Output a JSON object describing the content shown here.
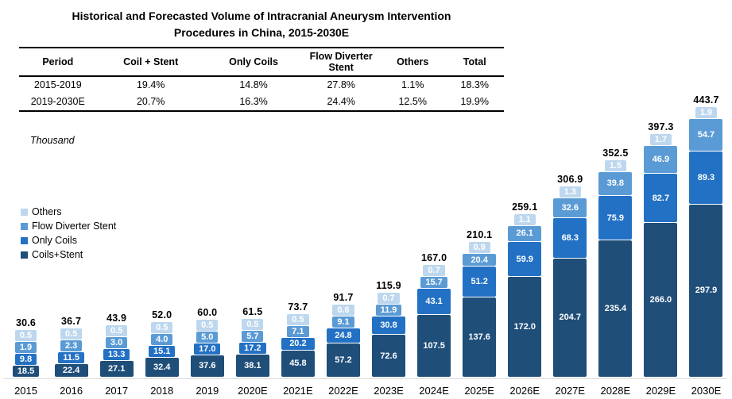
{
  "header": {
    "title_line1": "Historical and Forecasted Volume of Intracranial Aneurysm Intervention",
    "title_line2": "Procedures in China, 2015-2030E",
    "table": {
      "columns": [
        "Period",
        "Coil + Stent",
        "Only Coils",
        "Flow Diverter Stent",
        "Others",
        "Total"
      ],
      "rows": [
        [
          "2015-2019",
          "19.4%",
          "14.8%",
          "27.8%",
          "1.1%",
          "18.3%"
        ],
        [
          "2019-2030E",
          "20.7%",
          "16.3%",
          "24.4%",
          "12.5%",
          "19.9%"
        ]
      ]
    }
  },
  "chart": {
    "unit_label": "Thousand",
    "legend": [
      {
        "label": "Others",
        "color": "#BDD7EE"
      },
      {
        "label": "Flow Diverter Stent",
        "color": "#5B9BD5"
      },
      {
        "label": "Only Coils",
        "color": "#2371C4"
      },
      {
        "label": "Coils+Stent",
        "color": "#1F4E79"
      }
    ]
  },
  "chart_data": {
    "type": "bar",
    "stacked": true,
    "title": "Historical and Forecasted Volume of Intracranial Aneurysm Intervention Procedures in China, 2015-2030E",
    "ylabel": "Thousand",
    "ylim": [
      0,
      460
    ],
    "grid": false,
    "legend_position": "middle-left",
    "categories": [
      "2015",
      "2016",
      "2017",
      "2018",
      "2019",
      "2020E",
      "2021E",
      "2022E",
      "2023E",
      "2024E",
      "2025E",
      "2026E",
      "2027E",
      "2028E",
      "2029E",
      "2030E"
    ],
    "series": [
      {
        "name": "Coils+Stent",
        "color": "#1F4E79",
        "values": [
          18.5,
          22.4,
          27.1,
          32.4,
          37.6,
          38.1,
          45.8,
          57.2,
          72.6,
          107.5,
          137.6,
          172.0,
          204.7,
          235.4,
          266.0,
          297.9
        ]
      },
      {
        "name": "Only Coils",
        "color": "#2371C4",
        "values": [
          9.8,
          11.5,
          13.3,
          15.1,
          17.0,
          17.2,
          20.2,
          24.8,
          30.8,
          43.1,
          51.2,
          59.9,
          68.3,
          75.9,
          82.7,
          89.3
        ]
      },
      {
        "name": "Flow Diverter Stent",
        "color": "#5B9BD5",
        "values": [
          1.9,
          2.3,
          3.0,
          4.0,
          5.0,
          5.7,
          7.1,
          9.1,
          11.9,
          15.7,
          20.4,
          26.1,
          32.6,
          39.8,
          46.9,
          54.7
        ]
      },
      {
        "name": "Others",
        "color": "#BDD7EE",
        "values": [
          0.5,
          0.5,
          0.5,
          0.5,
          0.5,
          0.5,
          0.5,
          0.6,
          0.7,
          0.7,
          0.9,
          1.1,
          1.3,
          1.5,
          1.7,
          1.9
        ]
      }
    ],
    "totals": [
      30.6,
      36.7,
      43.9,
      52.0,
      60.0,
      61.5,
      73.7,
      91.7,
      115.9,
      167.0,
      210.1,
      259.1,
      306.9,
      352.5,
      397.3,
      443.7
    ]
  }
}
